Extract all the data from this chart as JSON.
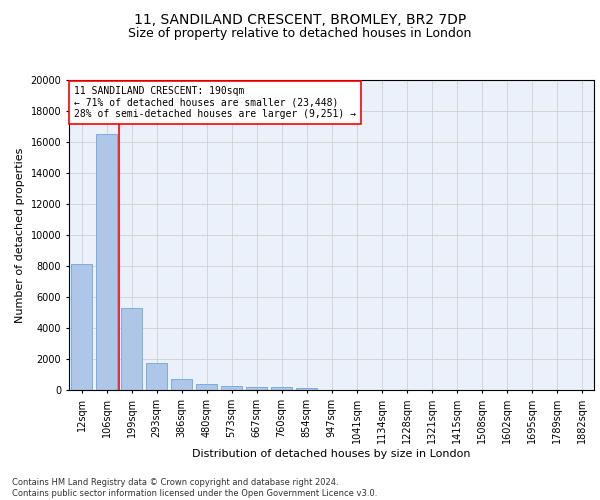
{
  "title1": "11, SANDILAND CRESCENT, BROMLEY, BR2 7DP",
  "title2": "Size of property relative to detached houses in London",
  "xlabel": "Distribution of detached houses by size in London",
  "ylabel": "Number of detached properties",
  "categories": [
    "12sqm",
    "106sqm",
    "199sqm",
    "293sqm",
    "386sqm",
    "480sqm",
    "573sqm",
    "667sqm",
    "760sqm",
    "854sqm",
    "947sqm",
    "1041sqm",
    "1134sqm",
    "1228sqm",
    "1321sqm",
    "1415sqm",
    "1508sqm",
    "1602sqm",
    "1695sqm",
    "1789sqm",
    "1882sqm"
  ],
  "values": [
    8100,
    16500,
    5300,
    1750,
    700,
    370,
    280,
    220,
    190,
    160,
    0,
    0,
    0,
    0,
    0,
    0,
    0,
    0,
    0,
    0,
    0
  ],
  "bar_color": "#aec6e8",
  "bar_edge_color": "#5b9bd5",
  "vline_color": "red",
  "annotation_box_text": "11 SANDILAND CRESCENT: 190sqm\n← 71% of detached houses are smaller (23,448)\n28% of semi-detached houses are larger (9,251) →",
  "ylim": [
    0,
    20000
  ],
  "yticks": [
    0,
    2000,
    4000,
    6000,
    8000,
    10000,
    12000,
    14000,
    16000,
    18000,
    20000
  ],
  "grid_color": "#d0d0d0",
  "bg_color": "#eaf1fb",
  "footnote": "Contains HM Land Registry data © Crown copyright and database right 2024.\nContains public sector information licensed under the Open Government Licence v3.0.",
  "title1_fontsize": 10,
  "title2_fontsize": 9,
  "xlabel_fontsize": 8,
  "ylabel_fontsize": 8,
  "tick_fontsize": 7,
  "annot_fontsize": 7,
  "footnote_fontsize": 6
}
